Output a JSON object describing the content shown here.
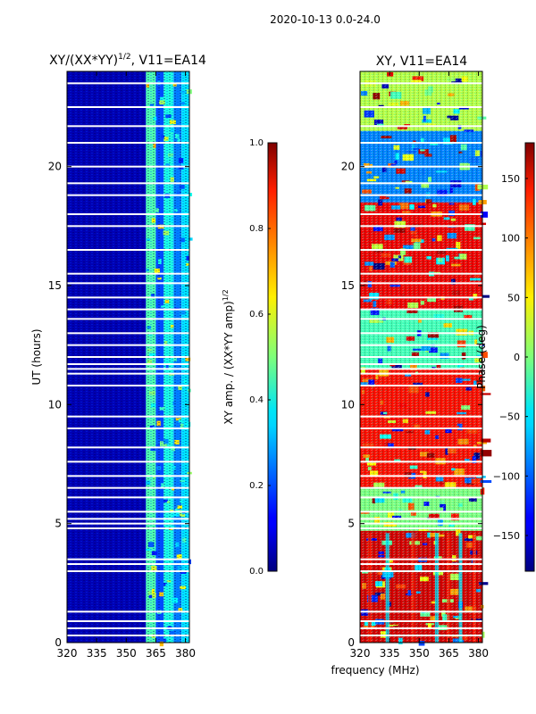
{
  "figure_title": "2020-10-13 0.0-24.0",
  "shared_xlabel": "frequency (MHz)",
  "chart_data": [
    {
      "type": "heatmap",
      "title": "XY/(XX*YY)",
      "title_exponent": "1/2",
      "title_suffix": ", V11=EA14",
      "xlabel": "frequency (MHz)",
      "ylabel": "UT (hours)",
      "xlim": [
        320,
        382
      ],
      "ylim": [
        0,
        24
      ],
      "xticks": [
        320,
        335,
        350,
        365,
        380
      ],
      "yticks": [
        0,
        5,
        10,
        15,
        20
      ],
      "colorbar": {
        "label": "XY amp. / (XX*YY amp)",
        "label_exponent": "1/2",
        "range": [
          0.0,
          1.0
        ],
        "ticks": [
          "0.0",
          "0.2",
          "0.4",
          "0.6",
          "0.8",
          "1.0"
        ],
        "colormap": "jet"
      },
      "bands": [
        {
          "freq": [
            320,
            360
          ],
          "value": 0.05
        },
        {
          "freq": [
            360,
            365
          ],
          "value": 0.45
        },
        {
          "freq": [
            365,
            369
          ],
          "value": 0.2
        },
        {
          "freq": [
            369,
            374
          ],
          "value": 0.4
        },
        {
          "freq": [
            374,
            378
          ],
          "value": 0.25
        },
        {
          "freq": [
            378,
            382
          ],
          "value": 0.35
        }
      ],
      "flagged_hours": [
        0.3,
        0.6,
        0.9,
        1.3,
        3.0,
        3.3,
        3.5,
        4.8,
        5.0,
        5.2,
        5.5,
        6.1,
        6.5,
        7.0,
        7.6,
        8.2,
        9.0,
        9.5,
        10.8,
        11.3,
        11.5,
        11.7,
        12.0,
        12.5,
        13.0,
        13.6,
        14.0,
        14.5,
        15.1,
        15.5,
        16.5,
        17.5,
        18.0,
        18.8,
        19.3,
        20.0,
        21.0,
        21.7,
        22.5,
        23.5
      ]
    },
    {
      "type": "heatmap",
      "title": "XY, V11=EA14",
      "xlabel": "frequency (MHz)",
      "ylabel": "",
      "xlim": [
        320,
        382
      ],
      "ylim": [
        0,
        24
      ],
      "xticks": [
        320,
        335,
        350,
        365,
        380
      ],
      "yticks": [
        0,
        5,
        10,
        15,
        20
      ],
      "colorbar": {
        "label": "Phase (deg)",
        "range": [
          -180,
          180
        ],
        "ticks": [
          "150",
          "100",
          "50",
          "0",
          "−50",
          "−100",
          "−150"
        ],
        "tick_values": [
          150,
          100,
          50,
          0,
          -50,
          -100,
          -150
        ],
        "colormap": "jet"
      },
      "phase_regions": [
        {
          "hours": [
            0,
            4.7
          ],
          "phase_deg": 150
        },
        {
          "hours": [
            4.7,
            6.5
          ],
          "phase_deg": 0
        },
        {
          "hours": [
            6.5,
            11.5
          ],
          "phase_deg": 130
        },
        {
          "hours": [
            11.5,
            14.0
          ],
          "phase_deg": -20
        },
        {
          "hours": [
            14.0,
            18.5
          ],
          "phase_deg": 140
        },
        {
          "hours": [
            18.5,
            21.5
          ],
          "phase_deg": -90
        },
        {
          "hours": [
            21.5,
            24
          ],
          "phase_deg": 20
        }
      ],
      "flagged_hours": [
        0.3,
        0.6,
        0.9,
        1.3,
        3.0,
        3.3,
        3.5,
        4.8,
        5.0,
        5.2,
        5.5,
        6.1,
        6.5,
        7.0,
        7.6,
        8.2,
        9.0,
        9.5,
        10.8,
        11.3,
        11.5,
        11.7,
        12.0,
        12.5,
        13.0,
        13.6,
        14.0,
        14.5,
        15.1,
        15.5,
        16.5,
        17.5,
        18.0,
        18.8,
        19.3,
        20.0,
        21.0,
        21.7,
        22.5,
        23.5
      ]
    }
  ]
}
